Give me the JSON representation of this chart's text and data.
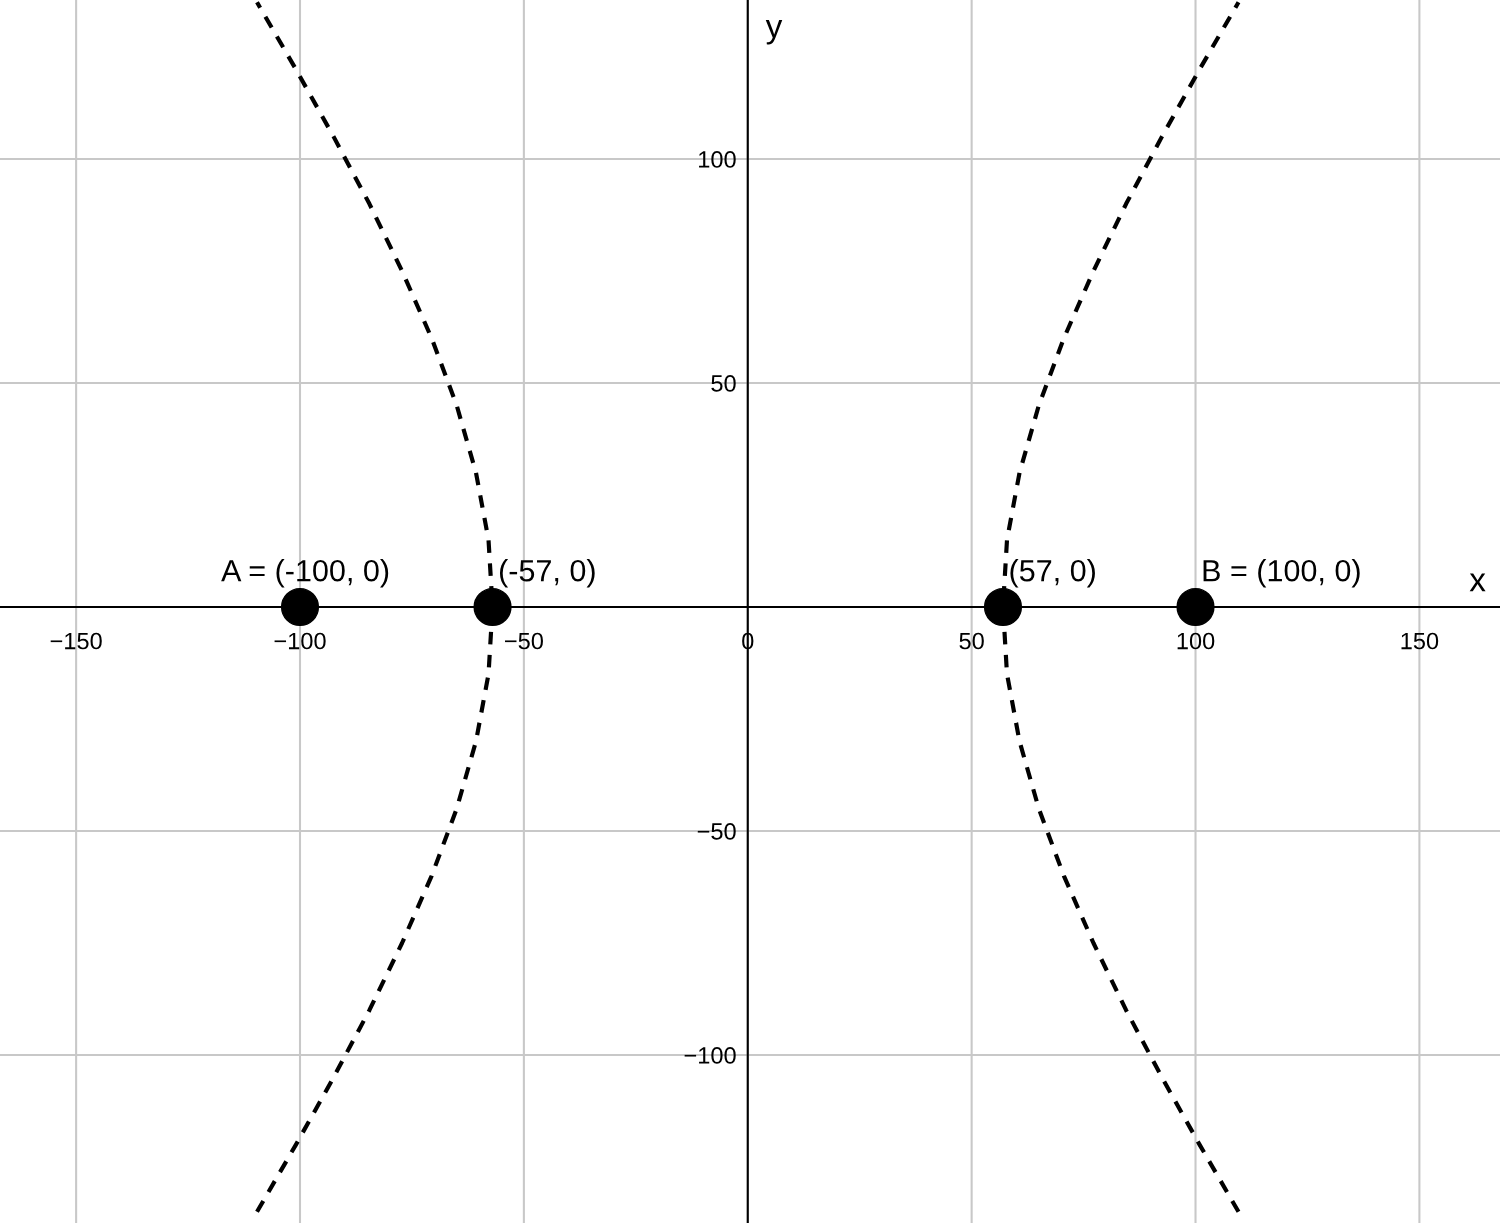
{
  "chart_data": {
    "type": "line",
    "xlabel": "x",
    "ylabel": "y",
    "xlim": [
      -167,
      168
    ],
    "ylim": [
      -137.5,
      135.5
    ],
    "xticks": [
      {
        "value": -150,
        "label": "−150"
      },
      {
        "value": -100,
        "label": "−100"
      },
      {
        "value": -50,
        "label": "−50"
      },
      0,
      50,
      100,
      150
    ],
    "yticks": [
      {
        "value": -100,
        "label": "−100"
      },
      {
        "value": -50,
        "label": "−50"
      },
      {
        "value": 0,
        "label": null
      },
      50,
      100
    ],
    "grid": true,
    "line_style": "dashed",
    "marker": "none",
    "series": [
      {
        "color": "#000000",
        "x": [
          109.6,
          100.9,
          92.5,
          84.5,
          77.2,
          70.6,
          65.0,
          60.7,
          57.9,
          57,
          57.9,
          60.7,
          65.0,
          70.6,
          77.2,
          84.5,
          92.5,
          100.9,
          109.6
        ],
        "values": [
          -135,
          -120,
          -105,
          -90,
          -75,
          -60,
          -45,
          -30,
          -15,
          0,
          15,
          30,
          45,
          60,
          75,
          90,
          105,
          120,
          135
        ]
      },
      {
        "color": "#000000",
        "x": [
          -109.6,
          -100.9,
          -92.5,
          -84.5,
          -77.2,
          -70.6,
          -65.0,
          -60.7,
          -57.9,
          -57,
          -57.9,
          -60.7,
          -65.0,
          -70.6,
          -77.2,
          -84.5,
          -92.5,
          -100.9,
          -109.6
        ],
        "values": [
          -135,
          -120,
          -105,
          -90,
          -75,
          -60,
          -45,
          -30,
          -15,
          0,
          15,
          30,
          45,
          60,
          75,
          90,
          105,
          120,
          135
        ]
      },
      {
        "type": "scatter",
        "color": "#000000",
        "marker": "circle",
        "x": [
          -100,
          -57,
          57,
          100
        ],
        "values": [
          0,
          0,
          0,
          0
        ]
      }
    ],
    "annotations": [
      {
        "text": "A = (-100, 0)",
        "x": -100,
        "y": 0
      },
      {
        "text": "(-57, 0)",
        "x": -57,
        "y": 0
      },
      {
        "text": "(57, 0)",
        "x": 57,
        "y": 0
      },
      {
        "text": "B = (100, 0)",
        "x": 100,
        "y": 0
      }
    ]
  }
}
